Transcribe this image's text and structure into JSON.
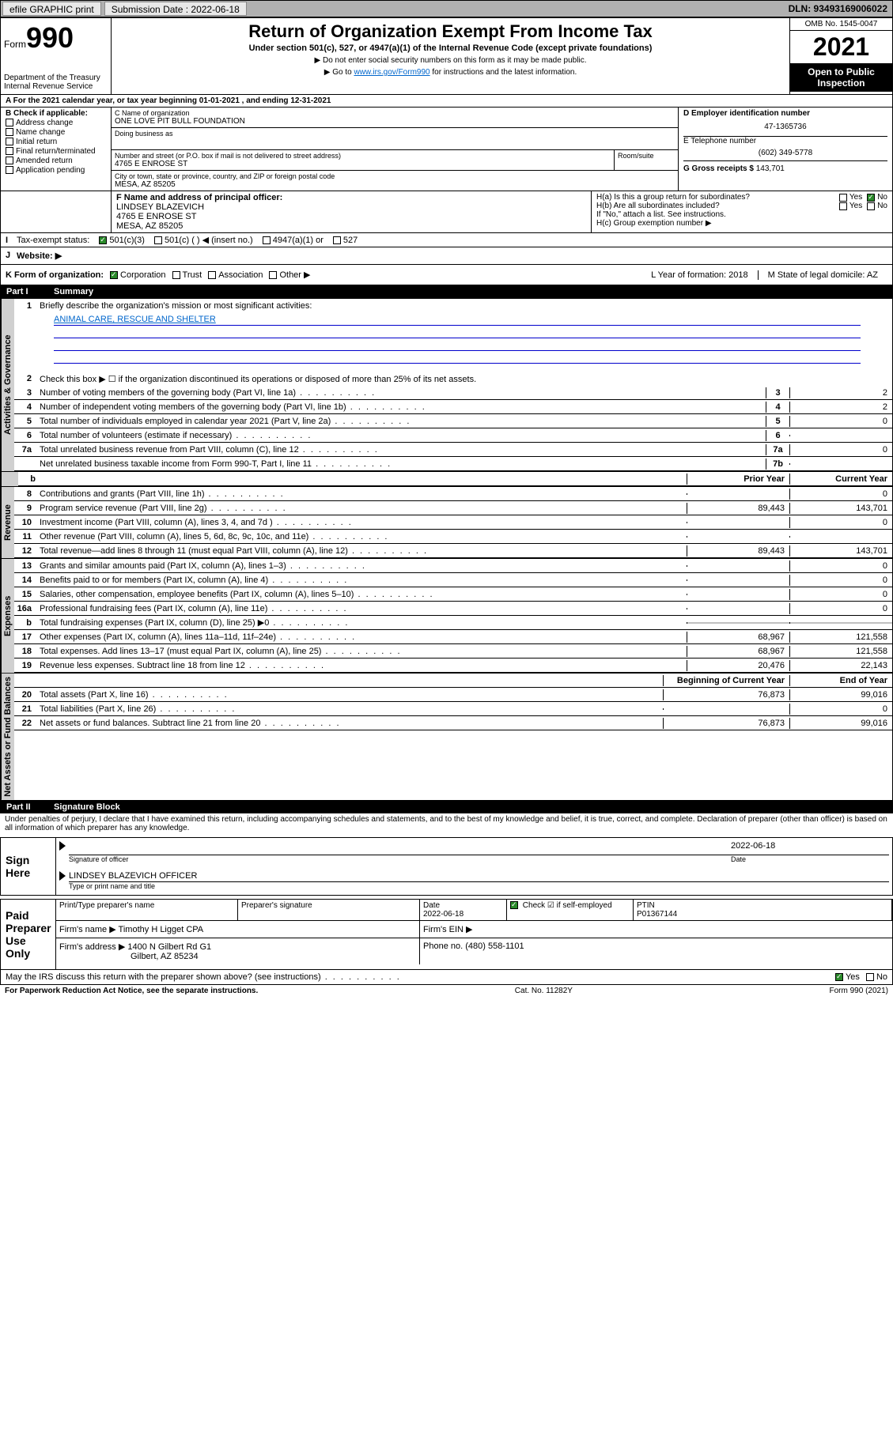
{
  "topbar": {
    "efile_label": "efile GRAPHIC print",
    "submission_label": "Submission Date : 2022-06-18",
    "dln": "DLN: 93493169006022"
  },
  "header": {
    "form_word": "Form",
    "form_num": "990",
    "dept": "Department of the Treasury Internal Revenue Service",
    "title": "Return of Organization Exempt From Income Tax",
    "subtitle": "Under section 501(c), 527, or 4947(a)(1) of the Internal Revenue Code (except private foundations)",
    "note1": "▶ Do not enter social security numbers on this form as it may be made public.",
    "note2_pre": "▶ Go to ",
    "note2_link": "www.irs.gov/Form990",
    "note2_post": " for instructions and the latest information.",
    "omb": "OMB No. 1545-0047",
    "year": "2021",
    "open_public": "Open to Public Inspection"
  },
  "sectionA": {
    "text": "A For the 2021 calendar year, or tax year beginning 01-01-2021   , and ending 12-31-2021"
  },
  "sectionB": {
    "label": "B Check if applicable:",
    "items": [
      "Address change",
      "Name change",
      "Initial return",
      "Final return/terminated",
      "Amended return",
      "Application pending"
    ]
  },
  "sectionC": {
    "name_label": "C Name of organization",
    "name": "ONE LOVE PIT BULL FOUNDATION",
    "dba_label": "Doing business as",
    "addr_label": "Number and street (or P.O. box if mail is not delivered to street address)",
    "room_label": "Room/suite",
    "addr": "4765 E ENROSE ST",
    "city_label": "City or town, state or province, country, and ZIP or foreign postal code",
    "city": "MESA, AZ  85205"
  },
  "sectionD": {
    "label": "D Employer identification number",
    "val": "47-1365736"
  },
  "sectionE": {
    "label": "E Telephone number",
    "val": "(602) 349-5778"
  },
  "sectionG": {
    "label": "G Gross receipts $",
    "val": "143,701"
  },
  "sectionF": {
    "label": "F Name and address of principal officer:",
    "name": "LINDSEY BLAZEVICH",
    "addr1": "4765 E ENROSE ST",
    "addr2": "MESA, AZ  85205"
  },
  "sectionH": {
    "a": "H(a)  Is this a group return for subordinates?",
    "b": "H(b)  Are all subordinates included?",
    "b_note": "If \"No,\" attach a list. See instructions.",
    "c": "H(c)  Group exemption number ▶",
    "yes": "Yes",
    "no": "No"
  },
  "sectionI": {
    "label": "Tax-exempt status:",
    "opt1": "501(c)(3)",
    "opt2": "501(c) (  ) ◀ (insert no.)",
    "opt3": "4947(a)(1) or",
    "opt4": "527"
  },
  "sectionJ": {
    "label": "Website: ▶"
  },
  "sectionK": {
    "label": "K Form of organization:",
    "opts": [
      "Corporation",
      "Trust",
      "Association",
      "Other ▶"
    ]
  },
  "sectionL": {
    "label": "L Year of formation: 2018"
  },
  "sectionM": {
    "label": "M State of legal domicile: AZ"
  },
  "part1": {
    "num": "Part I",
    "title": "Summary"
  },
  "mission": {
    "label": "Briefly describe the organization's mission or most significant activities:",
    "text": "ANIMAL CARE, RESCUE AND SHELTER"
  },
  "line2": "Check this box ▶ ☐  if the organization discontinued its operations or disposed of more than 25% of its net assets.",
  "summary": {
    "governance": [
      {
        "n": "3",
        "desc": "Number of voting members of the governing body (Part VI, line 1a)",
        "ln": "3",
        "v": "2"
      },
      {
        "n": "4",
        "desc": "Number of independent voting members of the governing body (Part VI, line 1b)",
        "ln": "4",
        "v": "2"
      },
      {
        "n": "5",
        "desc": "Total number of individuals employed in calendar year 2021 (Part V, line 2a)",
        "ln": "5",
        "v": "0"
      },
      {
        "n": "6",
        "desc": "Total number of volunteers (estimate if necessary)",
        "ln": "6",
        "v": ""
      },
      {
        "n": "7a",
        "desc": "Total unrelated business revenue from Part VIII, column (C), line 12",
        "ln": "7a",
        "v": "0"
      },
      {
        "n": "",
        "desc": "Net unrelated business taxable income from Form 990-T, Part I, line 11",
        "ln": "7b",
        "v": ""
      }
    ],
    "col_prior": "Prior Year",
    "col_current": "Current Year",
    "revenue": [
      {
        "n": "8",
        "desc": "Contributions and grants (Part VIII, line 1h)",
        "p": "",
        "c": "0"
      },
      {
        "n": "9",
        "desc": "Program service revenue (Part VIII, line 2g)",
        "p": "89,443",
        "c": "143,701"
      },
      {
        "n": "10",
        "desc": "Investment income (Part VIII, column (A), lines 3, 4, and 7d )",
        "p": "",
        "c": "0"
      },
      {
        "n": "11",
        "desc": "Other revenue (Part VIII, column (A), lines 5, 6d, 8c, 9c, 10c, and 11e)",
        "p": "",
        "c": ""
      },
      {
        "n": "12",
        "desc": "Total revenue—add lines 8 through 11 (must equal Part VIII, column (A), line 12)",
        "p": "89,443",
        "c": "143,701"
      }
    ],
    "expenses": [
      {
        "n": "13",
        "desc": "Grants and similar amounts paid (Part IX, column (A), lines 1–3)",
        "p": "",
        "c": "0"
      },
      {
        "n": "14",
        "desc": "Benefits paid to or for members (Part IX, column (A), line 4)",
        "p": "",
        "c": "0"
      },
      {
        "n": "15",
        "desc": "Salaries, other compensation, employee benefits (Part IX, column (A), lines 5–10)",
        "p": "",
        "c": "0"
      },
      {
        "n": "16a",
        "desc": "Professional fundraising fees (Part IX, column (A), line 11e)",
        "p": "",
        "c": "0"
      },
      {
        "n": "b",
        "desc": "Total fundraising expenses (Part IX, column (D), line 25) ▶0",
        "p": "grey",
        "c": "grey"
      },
      {
        "n": "17",
        "desc": "Other expenses (Part IX, column (A), lines 11a–11d, 11f–24e)",
        "p": "68,967",
        "c": "121,558"
      },
      {
        "n": "18",
        "desc": "Total expenses. Add lines 13–17 (must equal Part IX, column (A), line 25)",
        "p": "68,967",
        "c": "121,558"
      },
      {
        "n": "19",
        "desc": "Revenue less expenses. Subtract line 18 from line 12",
        "p": "20,476",
        "c": "22,143"
      }
    ],
    "col_begin": "Beginning of Current Year",
    "col_end": "End of Year",
    "assets": [
      {
        "n": "20",
        "desc": "Total assets (Part X, line 16)",
        "p": "76,873",
        "c": "99,016"
      },
      {
        "n": "21",
        "desc": "Total liabilities (Part X, line 26)",
        "p": "",
        "c": "0"
      },
      {
        "n": "22",
        "desc": "Net assets or fund balances. Subtract line 21 from line 20",
        "p": "76,873",
        "c": "99,016"
      }
    ]
  },
  "vert_labels": {
    "gov": "Activities & Governance",
    "rev": "Revenue",
    "exp": "Expenses",
    "net": "Net Assets or Fund Balances"
  },
  "part2": {
    "num": "Part II",
    "title": "Signature Block"
  },
  "penalties": "Under penalties of perjury, I declare that I have examined this return, including accompanying schedules and statements, and to the best of my knowledge and belief, it is true, correct, and complete. Declaration of preparer (other than officer) is based on all information of which preparer has any knowledge.",
  "sign": {
    "here": "Sign Here",
    "sig_officer": "Signature of officer",
    "date_val": "2022-06-18",
    "date": "Date",
    "name": "LINDSEY BLAZEVICH  OFFICER",
    "name_caption": "Type or print name and title"
  },
  "preparer": {
    "here": "Paid Preparer Use Only",
    "h1": "Print/Type preparer's name",
    "h2": "Preparer's signature",
    "h3": "Date",
    "h3v": "2022-06-18",
    "h4": "Check ☑ if self-employed",
    "h5": "PTIN",
    "h5v": "P01367144",
    "firm_name_lbl": "Firm's name    ▶",
    "firm_name": "Timothy H Ligget CPA",
    "firm_ein_lbl": "Firm's EIN ▶",
    "firm_addr_lbl": "Firm's address ▶",
    "firm_addr": "1400 N Gilbert Rd G1",
    "firm_city": "Gilbert, AZ  85234",
    "phone_lbl": "Phone no.",
    "phone": "(480) 558-1101"
  },
  "discuss": {
    "text": "May the IRS discuss this return with the preparer shown above? (see instructions)",
    "yes": "Yes",
    "no": "No"
  },
  "footer": {
    "left": "For Paperwork Reduction Act Notice, see the separate instructions.",
    "mid": "Cat. No. 11282Y",
    "right": "Form 990 (2021)"
  },
  "colors": {
    "topbar_bg": "#b0b0b0",
    "button_bg": "#e8e8e8",
    "black": "#000000",
    "link": "#0066cc",
    "grey_bg": "#c0c0c0",
    "vert_bg": "#d0d0d0",
    "check_green": "#2a8a2a"
  }
}
